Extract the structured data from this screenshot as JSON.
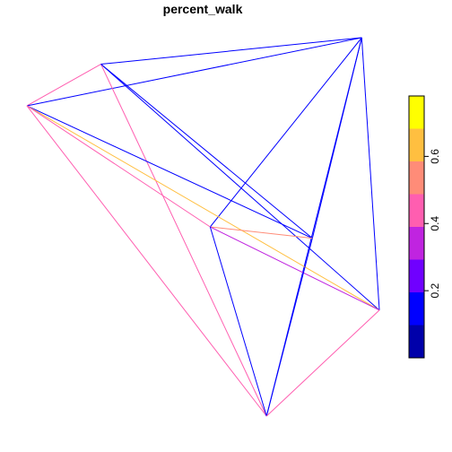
{
  "chart_data": {
    "type": "network",
    "title": "percent_walk",
    "nodes": [
      {
        "id": 1,
        "x": 0.21,
        "y": 0.93
      },
      {
        "id": 2,
        "x": 0.95,
        "y": 1.0
      },
      {
        "id": 3,
        "x": 0.0,
        "y": 0.82
      },
      {
        "id": 4,
        "x": 0.52,
        "y": 0.5
      },
      {
        "id": 5,
        "x": 0.81,
        "y": 0.47
      },
      {
        "id": 6,
        "x": 1.0,
        "y": 0.28
      },
      {
        "id": 7,
        "x": 0.68,
        "y": 0.0
      }
    ],
    "edges": [
      {
        "from": 3,
        "to": 1,
        "value": 0.45
      },
      {
        "from": 1,
        "to": 2,
        "value": 0.14
      },
      {
        "from": 3,
        "to": 2,
        "value": 0.14
      },
      {
        "from": 1,
        "to": 7,
        "value": 0.45
      },
      {
        "from": 1,
        "to": 6,
        "value": 0.14
      },
      {
        "from": 1,
        "to": 5,
        "value": 0.14
      },
      {
        "from": 2,
        "to": 7,
        "value": 0.14
      },
      {
        "from": 2,
        "to": 6,
        "value": 0.14
      },
      {
        "from": 2,
        "to": 4,
        "value": 0.14
      },
      {
        "from": 2,
        "to": 5,
        "value": 0.14
      },
      {
        "from": 3,
        "to": 5,
        "value": 0.14
      },
      {
        "from": 3,
        "to": 6,
        "value": 0.62
      },
      {
        "from": 3,
        "to": 4,
        "value": 0.45
      },
      {
        "from": 3,
        "to": 7,
        "value": 0.45
      },
      {
        "from": 4,
        "to": 5,
        "value": 0.52
      },
      {
        "from": 4,
        "to": 6,
        "value": 0.37
      },
      {
        "from": 4,
        "to": 7,
        "value": 0.14
      },
      {
        "from": 5,
        "to": 7,
        "value": 0.14
      },
      {
        "from": 6,
        "to": 7,
        "value": 0.45
      }
    ],
    "colorbar": {
      "colors": [
        "#0000AA",
        "#0000FF",
        "#7000FF",
        "#C024E0",
        "#FF5EB0",
        "#FF8C78",
        "#FFBF40",
        "#FFFF00"
      ],
      "range": [
        0.0,
        0.78
      ],
      "ticks": [
        0.2,
        0.4,
        0.6
      ],
      "tick_labels": [
        "0.2",
        "0.4",
        "0.6"
      ]
    }
  }
}
